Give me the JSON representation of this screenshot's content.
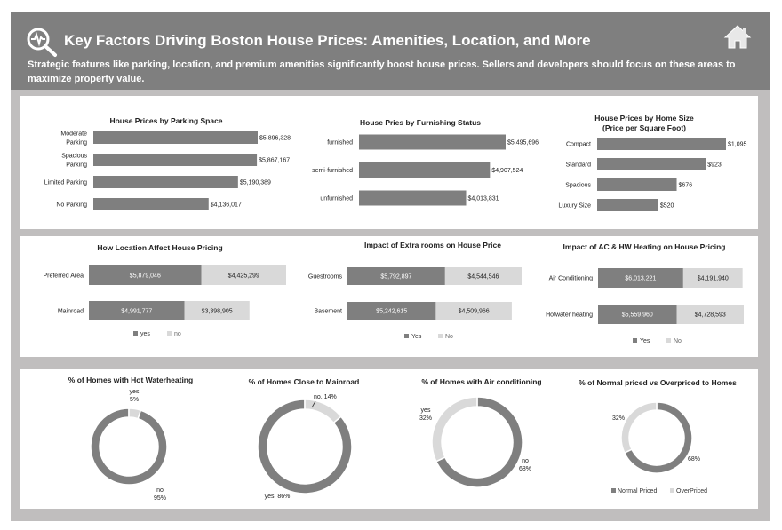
{
  "header": {
    "title": "Key Factors Driving Boston House Prices: Amenities, Location, and More",
    "subtitle": "Strategic features like parking, location, and premium amenities significantly boost house prices. Sellers and developers should focus on these areas to maximize property value."
  },
  "colors": {
    "dark": "#7f7f7f",
    "light": "#d9d9d9",
    "frame": "#c0bebe"
  },
  "icons": {
    "logo": "magnifier-pulse-icon",
    "home": "home-icon"
  },
  "chart_data": [
    {
      "id": "parking",
      "type": "bar",
      "orientation": "horizontal",
      "title": "House Prices by Parking Space",
      "categories": [
        "Moderate Parking",
        "Spacious Parking",
        "Limited Parking",
        "No Parking"
      ],
      "category_lines": [
        [
          "Moderate",
          "Parking"
        ],
        [
          "Spacious",
          "Parking"
        ],
        [
          "Limited Parking"
        ],
        [
          "No Parking"
        ]
      ],
      "values": [
        5896328,
        5867167,
        5190389,
        4136017
      ],
      "labels": [
        "$5,896,328",
        "$5,867,167",
        "$5,190,389",
        "$4,136,017"
      ]
    },
    {
      "id": "furnishing",
      "type": "bar",
      "orientation": "horizontal",
      "title": "House Pries by Furnishing Status",
      "categories": [
        "furnished",
        "semi-furnished",
        "unfurnished"
      ],
      "category_lines": [
        [
          "furnished"
        ],
        [
          "semi-furnished"
        ],
        [
          "unfurnished"
        ]
      ],
      "values": [
        5495696,
        4907524,
        4013831
      ],
      "labels": [
        "$5,495,696",
        "$4,907,524",
        "$4,013,831"
      ]
    },
    {
      "id": "homesize",
      "type": "bar",
      "orientation": "horizontal",
      "title": "House Prices by Home Size",
      "subtitle": "(Price per Square Foot)",
      "categories": [
        "Compact",
        "Standard",
        "Spacious",
        "Luxury Size"
      ],
      "category_lines": [
        [
          "Compact"
        ],
        [
          "Standard"
        ],
        [
          "Spacious"
        ],
        [
          "Luxury Size"
        ]
      ],
      "values": [
        1095,
        923,
        676,
        520
      ],
      "labels": [
        "$1,095",
        "$923",
        "$676",
        "$520"
      ]
    },
    {
      "id": "location",
      "type": "bar",
      "orientation": "horizontal",
      "stacked": true,
      "title": "How Location Affect House Pricing",
      "categories": [
        "Preferred Area",
        "Mainroad"
      ],
      "series": [
        {
          "name": "yes",
          "values": [
            5879046,
            4991777
          ],
          "labels": [
            "$5,879,046",
            "$4,991,777"
          ]
        },
        {
          "name": "no",
          "values": [
            4425299,
            3398905
          ],
          "labels": [
            "$4,425,299",
            "$3,398,905"
          ]
        }
      ],
      "legend": [
        "yes",
        "no"
      ]
    },
    {
      "id": "extrarooms",
      "type": "bar",
      "orientation": "horizontal",
      "stacked": true,
      "title": "Impact of Extra rooms on House Price",
      "categories": [
        "Guestrooms",
        "Basement"
      ],
      "series": [
        {
          "name": "Yes",
          "values": [
            5792897,
            5242615
          ],
          "labels": [
            "$5,792,897",
            "$5,242,615"
          ]
        },
        {
          "name": "No",
          "values": [
            4544546,
            4509966
          ],
          "labels": [
            "$4,544,546",
            "$4,509,966"
          ]
        }
      ],
      "legend": [
        "Yes",
        "No"
      ]
    },
    {
      "id": "heating",
      "type": "bar",
      "orientation": "horizontal",
      "stacked": true,
      "title": "Impact of AC & HW Heating on House Pricing",
      "categories": [
        "Air Conditioning",
        "Hotwater heating"
      ],
      "series": [
        {
          "name": "Yes",
          "values": [
            6013221,
            5559960
          ],
          "labels": [
            "$6,013,221",
            "$5,559,960"
          ]
        },
        {
          "name": "No",
          "values": [
            4191940,
            4728593
          ],
          "labels": [
            "$4,191,940",
            "$4,728,593"
          ]
        }
      ],
      "legend": [
        "Yes",
        "No"
      ]
    },
    {
      "id": "hotwater",
      "type": "pie",
      "donut": true,
      "title": "% of Homes with Hot Waterheating",
      "slices": [
        {
          "name": "no",
          "value": 95,
          "label_lines": [
            "no",
            "95%"
          ]
        },
        {
          "name": "yes",
          "value": 5,
          "label_lines": [
            "yes",
            "5%"
          ]
        }
      ]
    },
    {
      "id": "mainroad",
      "type": "pie",
      "donut": true,
      "title": "% of Homes Close to Mainroad",
      "slices": [
        {
          "name": "yes",
          "value": 86,
          "label_lines": [
            "yes, 86%"
          ]
        },
        {
          "name": "no",
          "value": 14,
          "label_lines": [
            "no, 14%"
          ]
        }
      ]
    },
    {
      "id": "aircon",
      "type": "pie",
      "donut": true,
      "title": "% of Homes with Air conditioning",
      "slices": [
        {
          "name": "no",
          "value": 68,
          "label_lines": [
            "no",
            "68%"
          ]
        },
        {
          "name": "yes",
          "value": 32,
          "label_lines": [
            "yes",
            "32%"
          ]
        }
      ]
    },
    {
      "id": "overpriced",
      "type": "pie",
      "donut": true,
      "title": "% of Normal priced vs Overpriced to Homes",
      "slices": [
        {
          "name": "Normal Priced",
          "value": 68,
          "label_lines": [
            "68%"
          ]
        },
        {
          "name": "OverPriced",
          "value": 32,
          "label_lines": [
            "32%"
          ]
        }
      ],
      "legend": [
        "Normal Priced",
        "OverPriced"
      ]
    }
  ]
}
